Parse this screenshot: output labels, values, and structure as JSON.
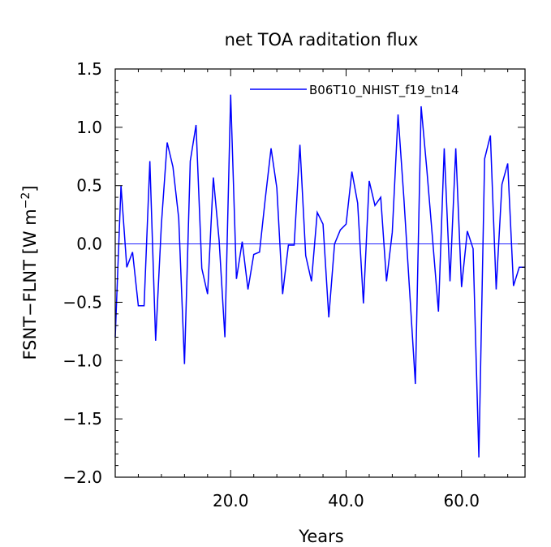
{
  "chart_data": {
    "type": "line",
    "title": "net TOA raditation flux",
    "xlabel": "Years",
    "ylabel_main": "FSNT−FLNT [W m",
    "ylabel_sup": "−2",
    "ylabel_end": "]",
    "xlim": [
      0,
      71
    ],
    "ylim": [
      -2.0,
      1.5
    ],
    "x_ticks": [
      20,
      40,
      60
    ],
    "x_tick_labels": [
      "20.0",
      "40.0",
      "60.0"
    ],
    "y_ticks": [
      1.5,
      1.0,
      0.5,
      0.0,
      -0.5,
      -1.0,
      -1.5,
      -2.0
    ],
    "y_tick_labels": [
      "1.5",
      "1.0",
      "0.5",
      "0.0",
      "−0.5",
      "−1.0",
      "−1.5",
      "−2.0"
    ],
    "reference_line": 0.0,
    "legend_position": "top-right",
    "series": [
      {
        "name": "B06T10_NHIST_f19_tn14",
        "color": "#0000ff",
        "x": [
          0,
          1,
          2,
          3,
          4,
          5,
          6,
          7,
          8,
          9,
          10,
          11,
          12,
          13,
          14,
          15,
          16,
          17,
          18,
          19,
          20,
          21,
          22,
          23,
          24,
          25,
          26,
          27,
          28,
          29,
          30,
          31,
          32,
          33,
          34,
          35,
          36,
          37,
          38,
          39,
          40,
          41,
          42,
          43,
          44,
          45,
          46,
          47,
          48,
          49,
          50,
          51,
          52,
          53,
          54,
          55,
          56,
          57,
          58,
          59,
          60,
          61,
          62,
          63,
          64,
          65,
          66,
          67,
          68,
          69,
          70,
          71
        ],
        "values": [
          -0.8,
          0.5,
          -0.2,
          -0.07,
          -0.53,
          -0.53,
          0.71,
          -0.83,
          0.17,
          0.87,
          0.66,
          0.22,
          -1.03,
          0.71,
          1.02,
          -0.21,
          -0.43,
          0.57,
          0.03,
          -0.8,
          1.28,
          -0.3,
          0.02,
          -0.39,
          -0.09,
          -0.07,
          0.39,
          0.82,
          0.48,
          -0.43,
          -0.01,
          -0.01,
          0.85,
          -0.1,
          -0.32,
          0.27,
          0.17,
          -0.63,
          0.0,
          0.12,
          0.17,
          0.62,
          0.35,
          -0.51,
          0.54,
          0.33,
          0.4,
          -0.32,
          0.1,
          1.11,
          0.4,
          -0.4,
          -1.2,
          1.18,
          0.63,
          0.03,
          -0.58,
          0.82,
          -0.32,
          0.82,
          -0.37,
          0.11,
          -0.04,
          -1.83,
          0.73,
          0.93,
          -0.39,
          0.51,
          0.69,
          -0.36,
          -0.2,
          -0.2
        ]
      }
    ]
  }
}
